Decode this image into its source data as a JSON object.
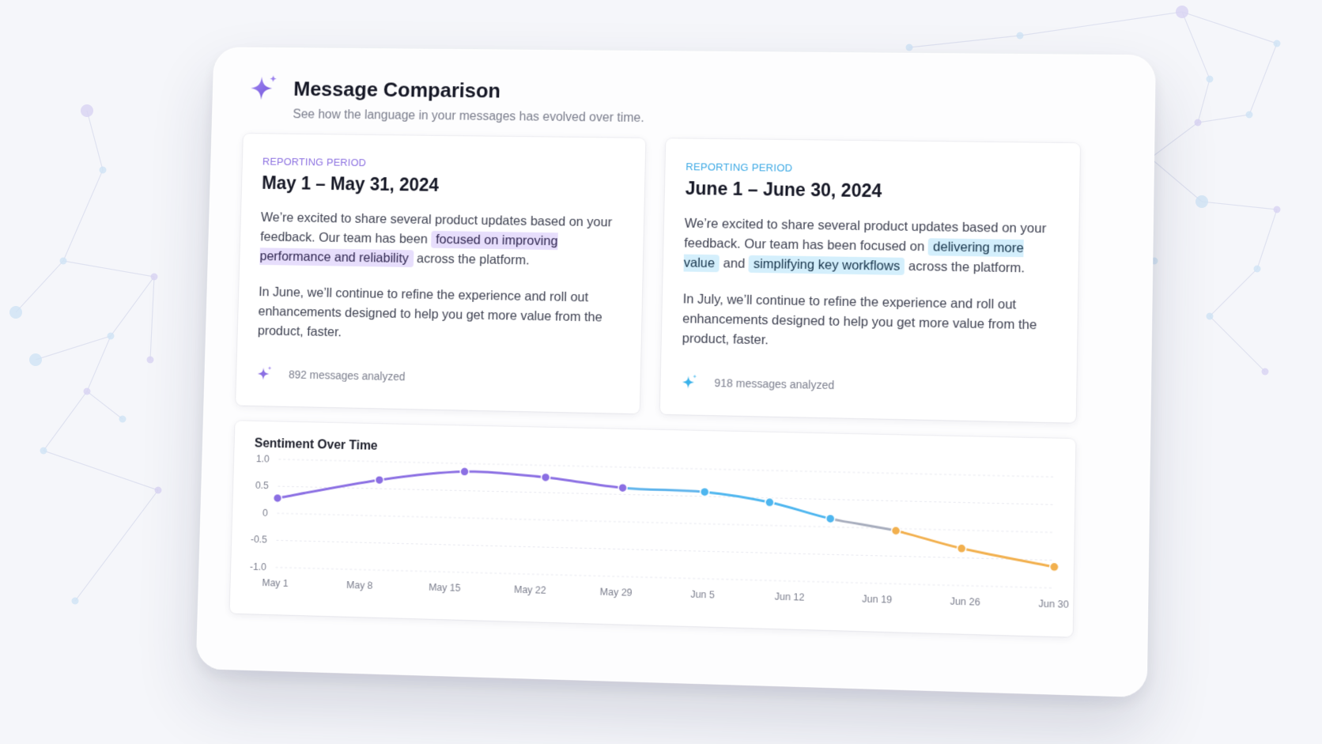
{
  "header": {
    "title": "Message Comparison",
    "subtitle": "See how the language in your messages has evolved over time."
  },
  "periods": [
    {
      "label": "REPORTING PERIOD",
      "range": "May 1 – May 31, 2024",
      "para1_before": "We’re excited to share several product updates based on your feedback. Our team has been ",
      "para1_highlight": "focused on improving performance and reliability",
      "para1_after": " across the platform.",
      "para2": "In June, we’ll continue to refine the experience and roll out enhancements designed to help you get more value from the product, faster.",
      "messages": "892 messages analyzed",
      "accent": "#8b6fe3"
    },
    {
      "label": "REPORTING PERIOD",
      "range": "June 1 – June 30, 2024",
      "para1_before": "We’re excited to share several product updates based on your feedback. Our team has been focused on ",
      "para1_highlight": "delivering more value",
      "para1_mid": " and ",
      "para1_highlight2": "simplifying key workflows",
      "para1_after": " across the platform.",
      "para2": "In July, we’ll continue to refine the experience and roll out enhancements designed to help you get more value from the product, faster.",
      "messages": "918 messages analyzed",
      "accent": "#3ab2ea"
    }
  ],
  "chart_data": {
    "type": "line",
    "title": "Sentiment Over Time",
    "xlabel": "",
    "ylabel": "",
    "categories": [
      "May 1",
      "May 8",
      "May 15",
      "May 22",
      "May 29",
      "Jun 5",
      "Jun 12",
      "Jun 19",
      "Jun 26",
      "Jun 30"
    ],
    "x": [
      "May 1",
      "May 8",
      "May 15",
      "May 22",
      "May 29",
      "Jun 5",
      "Jun 12",
      "Jun 19",
      "Jun 26",
      "Jun 30"
    ],
    "y_ticks": [
      "1.0",
      "0.5",
      "0",
      "-0.5",
      "-1.0"
    ],
    "ylim": [
      -1.0,
      1.0
    ],
    "grid": true,
    "legend": "none",
    "points": [
      {
        "x": 0.0,
        "y": 0.28
      },
      {
        "x": 1.2,
        "y": 0.66
      },
      {
        "x": 2.2,
        "y": 0.85
      },
      {
        "x": 3.15,
        "y": 0.78
      },
      {
        "x": 4.05,
        "y": 0.62
      },
      {
        "x": 5.0,
        "y": 0.58
      },
      {
        "x": 5.75,
        "y": 0.42
      },
      {
        "x": 6.45,
        "y": 0.15
      },
      {
        "x": 7.2,
        "y": -0.04
      },
      {
        "x": 7.95,
        "y": -0.33
      },
      {
        "x": 9.0,
        "y": -0.62
      }
    ],
    "segment_colors": [
      "#8b6fe3",
      "#8b6fe3",
      "#8b6fe3",
      "#8b6fe3",
      "#5fb4ec",
      "#4eb6ef",
      "#4eb6ef",
      "#a7adbd",
      "#f2b04e",
      "#f2b04e"
    ],
    "point_colors": [
      "#8b6fe3",
      "#8b6fe3",
      "#8b6fe3",
      "#8b6fe3",
      "#8b6fe3",
      "#4eb6ef",
      "#4eb6ef",
      "#4eb6ef",
      "#f2b04e",
      "#f2b04e",
      "#f2b04e"
    ]
  }
}
